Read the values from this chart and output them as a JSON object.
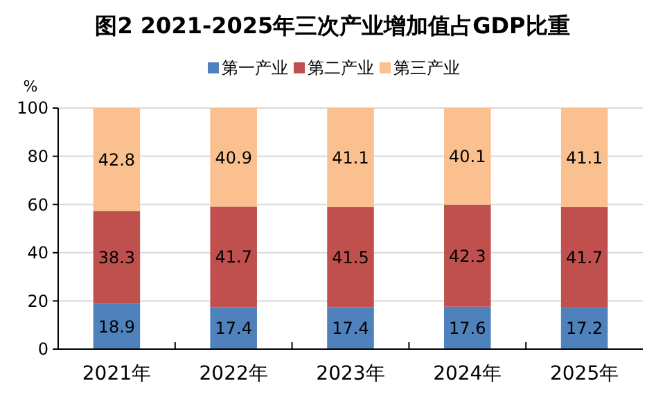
{
  "chart_data": {
    "type": "bar",
    "stacked": true,
    "title": "图2  2021-2025年三次产业增加值占GDP比重",
    "ylabel": "%",
    "categories": [
      "2021年",
      "2022年",
      "2023年",
      "2024年",
      "2025年"
    ],
    "series": [
      {
        "name": "第一产业",
        "color": "#4f81bd",
        "values": [
          18.9,
          17.4,
          17.4,
          17.6,
          17.2
        ]
      },
      {
        "name": "第二产业",
        "color": "#c0504d",
        "values": [
          38.3,
          41.7,
          41.5,
          42.3,
          41.7
        ]
      },
      {
        "name": "第三产业",
        "color": "#fac090",
        "values": [
          42.8,
          40.9,
          41.1,
          40.1,
          41.1
        ]
      }
    ],
    "ylim": [
      0,
      100
    ],
    "yticks": [
      0,
      20,
      40,
      60,
      80,
      100
    ],
    "grid": "y",
    "legend": "top",
    "data_labels": true
  }
}
